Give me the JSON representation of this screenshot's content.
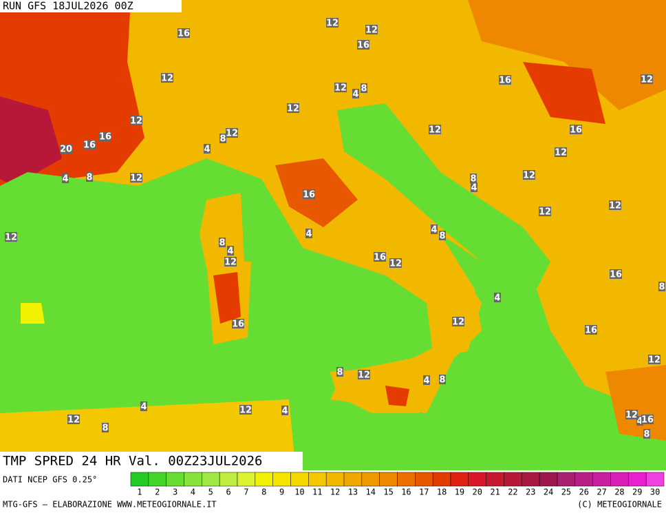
{
  "header": {
    "run": "RUN GFS 18JUL2026 00Z"
  },
  "map": {
    "labels": [
      16,
      12,
      12,
      16,
      12,
      12,
      4,
      8,
      12,
      16,
      12,
      12,
      12,
      8,
      12,
      16,
      16,
      16,
      20,
      4,
      12,
      4,
      8,
      12,
      8,
      4,
      12,
      16,
      12,
      12,
      12,
      4,
      4,
      8,
      8,
      4,
      12,
      16,
      12,
      16,
      8,
      4,
      12,
      16,
      16,
      12,
      8,
      12,
      4,
      8,
      4,
      12,
      4,
      12,
      8,
      12,
      4,
      16,
      8
    ]
  },
  "footer": {
    "product": "TMP SPRED 24 HR Val. 00Z23JUL2026",
    "source": "DATI NCEP GFS 0.25°",
    "credit_left": "MTG-GFS — ELABORAZIONE WWW.METEOGIORNALE.IT",
    "credit_right": "(C) METEOGIORNALE"
  },
  "scale": {
    "values": [
      1,
      2,
      3,
      4,
      5,
      6,
      7,
      8,
      9,
      10,
      11,
      12,
      13,
      14,
      15,
      16,
      17,
      18,
      19,
      20,
      21,
      22,
      23,
      24,
      25,
      26,
      27,
      28,
      29,
      30
    ],
    "colors": [
      "#22cc22",
      "#44d52a",
      "#66dd33",
      "#88e23c",
      "#a0e844",
      "#c0ee40",
      "#ddf230",
      "#f2f200",
      "#f4e400",
      "#f5d800",
      "#f4c800",
      "#f2b800",
      "#f0a800",
      "#ef9800",
      "#ee8800",
      "#ec7000",
      "#e85800",
      "#e43c00",
      "#e02010",
      "#d81828",
      "#c81830",
      "#b81838",
      "#a81840",
      "#a01850",
      "#a82070",
      "#b82088",
      "#c820a0",
      "#d820b8",
      "#e820d0",
      "#f040e0"
    ]
  }
}
